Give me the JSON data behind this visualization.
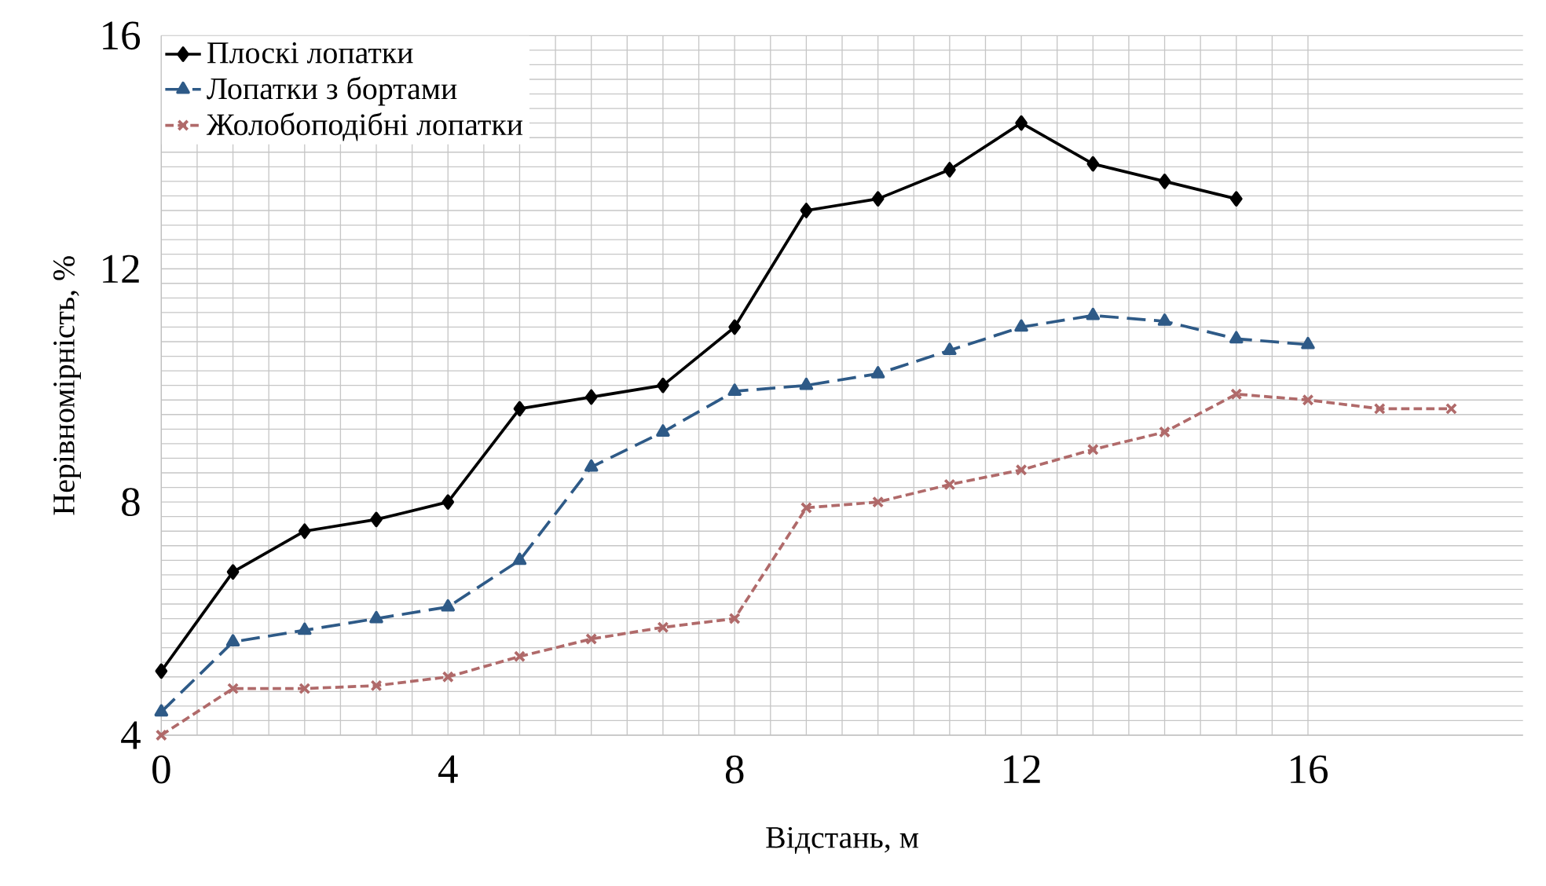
{
  "chart_data": {
    "type": "line",
    "xlabel": "Відстань, м",
    "ylabel": "Нерівномірність, %",
    "xlim": [
      0,
      19
    ],
    "ylim": [
      4,
      16
    ],
    "xticks": [
      0,
      4,
      8,
      12,
      16
    ],
    "yticks": [
      4,
      8,
      12,
      16
    ],
    "grid": true,
    "legend": "top left",
    "series": [
      {
        "name": "Плоскі лопатки",
        "color": "#000000",
        "marker": "diamond",
        "line_style": "solid",
        "x": [
          0,
          1,
          2,
          3,
          4,
          5,
          6,
          7,
          8,
          9,
          10,
          11,
          12,
          13,
          14,
          15
        ],
        "values": [
          5.1,
          6.8,
          7.5,
          7.7,
          8.0,
          9.6,
          9.8,
          10.0,
          11.0,
          13.0,
          13.2,
          13.7,
          14.5,
          13.8,
          13.5,
          13.2
        ]
      },
      {
        "name": "Лопатки з бортами",
        "color": "#2e5a87",
        "marker": "triangle",
        "line_style": "dashed",
        "x": [
          0,
          1,
          2,
          3,
          4,
          5,
          6,
          7,
          8,
          9,
          10,
          11,
          12,
          13,
          14,
          15,
          16
        ],
        "values": [
          4.4,
          5.6,
          5.8,
          6.0,
          6.2,
          7.0,
          8.6,
          9.2,
          9.9,
          10.0,
          10.2,
          10.6,
          11.0,
          11.2,
          11.1,
          10.8,
          10.7
        ]
      },
      {
        "name": "Жолобоподібні лопатки",
        "color": "#b06a6a",
        "marker": "cross",
        "line_style": "dotted",
        "x": [
          0,
          1,
          2,
          3,
          4,
          5,
          6,
          7,
          8,
          9,
          10,
          11,
          12,
          13,
          14,
          15,
          16,
          17,
          18
        ],
        "values": [
          4.0,
          4.8,
          4.8,
          4.85,
          5.0,
          5.35,
          5.65,
          5.85,
          6.0,
          7.9,
          8.0,
          8.3,
          8.55,
          8.9,
          9.2,
          9.85,
          9.75,
          9.6,
          9.6
        ]
      }
    ]
  }
}
